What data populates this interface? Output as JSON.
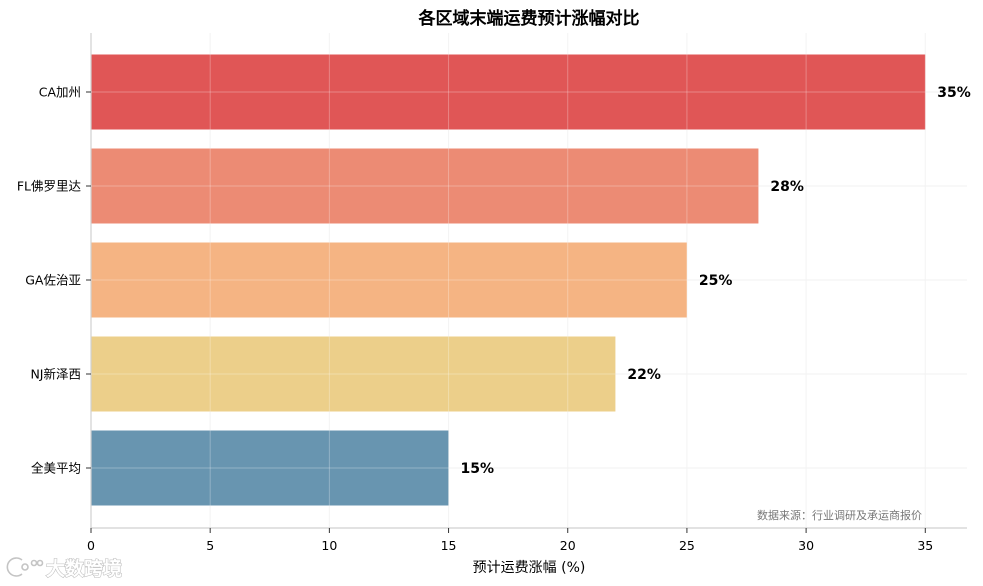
{
  "chart_data": {
    "type": "bar",
    "orientation": "horizontal",
    "title": "各区域末端运费预计涨幅对比",
    "xlabel": "预计运费涨幅 (%)",
    "ylabel": "",
    "categories": [
      "CA加州",
      "FL佛罗里达",
      "GA佐治亚",
      "NJ新泽西",
      "全美平均"
    ],
    "values": [
      35,
      28,
      25,
      22,
      15
    ],
    "data_labels": [
      "35%",
      "28%",
      "25%",
      "22%",
      "15%"
    ],
    "colors": [
      "#e05656",
      "#ec8b74",
      "#f5b483",
      "#eccf8a",
      "#6895b0"
    ],
    "xlim": [
      0,
      36.75
    ],
    "xticks": [
      0,
      5,
      10,
      15,
      20,
      25,
      30,
      35
    ],
    "grid": true,
    "legend": "none",
    "annotation": "数据来源：行业调研及承运商报价"
  },
  "watermark": {
    "text": "大数跨境"
  }
}
